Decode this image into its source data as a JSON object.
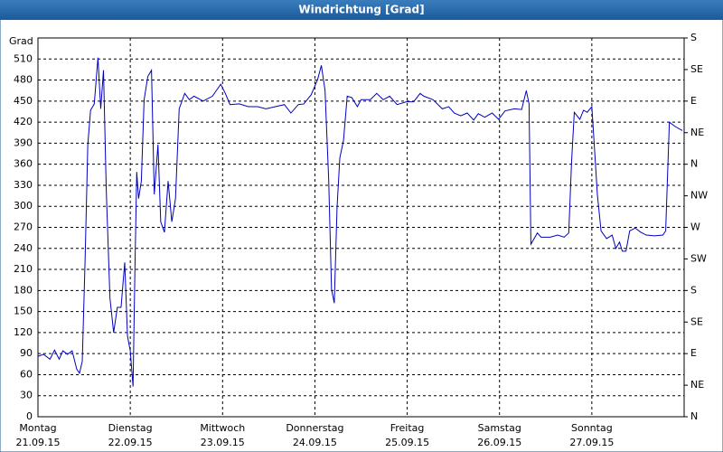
{
  "chart_data": {
    "type": "line",
    "title": "Windrichtung [Grad]",
    "y_label": "Grad",
    "x": [
      0,
      0.06,
      0.13,
      0.18,
      0.23,
      0.27,
      0.32,
      0.37,
      0.42,
      0.45,
      0.48,
      0.51,
      0.54,
      0.57,
      0.61,
      0.65,
      0.68,
      0.71,
      0.74,
      0.78,
      0.82,
      0.86,
      0.9,
      0.94,
      0.97,
      1.0,
      1.03,
      1.05,
      1.07,
      1.09,
      1.12,
      1.15,
      1.19,
      1.23,
      1.26,
      1.3,
      1.33,
      1.37,
      1.41,
      1.45,
      1.49,
      1.53,
      1.59,
      1.64,
      1.69,
      1.79,
      1.89,
      1.98,
      2.03,
      2.08,
      2.18,
      2.28,
      2.38,
      2.47,
      2.57,
      2.67,
      2.74,
      2.82,
      2.88,
      2.96,
      3.03,
      3.07,
      3.11,
      3.15,
      3.18,
      3.21,
      3.24,
      3.27,
      3.31,
      3.35,
      3.4,
      3.46,
      3.5,
      3.6,
      3.67,
      3.74,
      3.81,
      3.89,
      3.99,
      4.07,
      4.14,
      4.18,
      4.28,
      4.38,
      4.45,
      4.51,
      4.58,
      4.65,
      4.72,
      4.77,
      4.84,
      4.92,
      4.99,
      5.06,
      5.16,
      5.24,
      5.29,
      5.32,
      5.34,
      5.41,
      5.45,
      5.55,
      5.63,
      5.7,
      5.75,
      5.78,
      5.81,
      5.87,
      5.91,
      5.95,
      6.0,
      6.02,
      6.06,
      6.1,
      6.16,
      6.22,
      6.26,
      6.3,
      6.33,
      6.37,
      6.41,
      6.47,
      6.53,
      6.59,
      6.68,
      6.77,
      6.8,
      6.84,
      6.9,
      6.98
    ],
    "series": [
      {
        "name": "Windrichtung",
        "color": "#0000c0",
        "values": [
          86,
          89,
          82,
          95,
          82,
          94,
          89,
          94,
          68,
          62,
          79,
          220,
          388,
          437,
          446,
          512,
          439,
          494,
          323,
          169,
          120,
          156,
          156,
          220,
          115,
          94,
          43,
          207,
          349,
          311,
          336,
          452,
          485,
          494,
          317,
          388,
          278,
          263,
          336,
          278,
          311,
          439,
          461,
          452,
          457,
          450,
          457,
          474,
          461,
          445,
          446,
          442,
          442,
          439,
          442,
          445,
          433,
          445,
          446,
          459,
          481,
          501,
          465,
          336,
          182,
          162,
          298,
          369,
          394,
          457,
          455,
          442,
          452,
          452,
          461,
          452,
          457,
          445,
          449,
          449,
          461,
          457,
          452,
          439,
          442,
          433,
          429,
          433,
          423,
          432,
          427,
          433,
          424,
          436,
          439,
          438,
          465,
          446,
          246,
          262,
          256,
          256,
          259,
          256,
          262,
          362,
          434,
          424,
          437,
          434,
          442,
          401,
          317,
          265,
          254,
          259,
          240,
          249,
          236,
          236,
          265,
          269,
          263,
          259,
          258,
          259,
          265,
          420,
          414,
          408
        ]
      }
    ],
    "xlim": [
      0,
      7
    ],
    "xticks": [
      {
        "value": 0,
        "label": "Montag",
        "date": "21.09.15"
      },
      {
        "value": 1,
        "label": "Dienstag",
        "date": "22.09.15"
      },
      {
        "value": 2,
        "label": "Mittwoch",
        "date": "23.09.15"
      },
      {
        "value": 3,
        "label": "Donnerstag",
        "date": "24.09.15"
      },
      {
        "value": 4,
        "label": "Freitag",
        "date": "25.09.15"
      },
      {
        "value": 5,
        "label": "Samstag",
        "date": "26.09.15"
      },
      {
        "value": 6,
        "label": "Sonntag",
        "date": "27.09.15"
      }
    ],
    "ylim": [
      0,
      540
    ],
    "yticks": [
      0,
      30,
      60,
      90,
      120,
      150,
      180,
      210,
      240,
      270,
      300,
      330,
      360,
      390,
      420,
      450,
      480,
      510
    ],
    "y2lim": [
      0,
      540
    ],
    "y2ticks": [
      {
        "value": 0,
        "label": "N"
      },
      {
        "value": 45,
        "label": "NE"
      },
      {
        "value": 90,
        "label": "E"
      },
      {
        "value": 135,
        "label": "SE"
      },
      {
        "value": 180,
        "label": "S"
      },
      {
        "value": 225,
        "label": "SW"
      },
      {
        "value": 270,
        "label": "W"
      },
      {
        "value": 315,
        "label": "NW"
      },
      {
        "value": 360,
        "label": "N"
      },
      {
        "value": 405,
        "label": "NE"
      },
      {
        "value": 450,
        "label": "E"
      },
      {
        "value": 495,
        "label": "SE"
      },
      {
        "value": 540,
        "label": "S"
      }
    ],
    "grid": true
  }
}
